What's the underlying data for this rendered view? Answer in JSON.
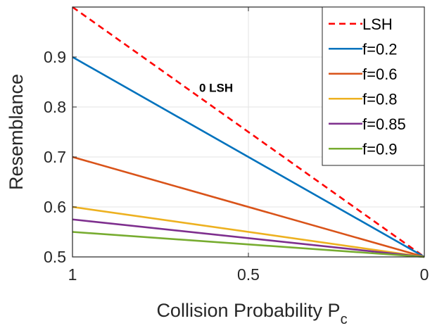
{
  "chart_data": {
    "type": "line",
    "xlabel": "Collision Probability P",
    "xlabel_subscript": "c",
    "ylabel": "Resemblance",
    "xlim": [
      1,
      0
    ],
    "ylim": [
      0.5,
      1.0
    ],
    "x_reversed": true,
    "xticks": [
      1,
      0.5,
      0
    ],
    "xtick_labels": [
      "1",
      "0.5",
      "0"
    ],
    "yticks": [
      0.5,
      0.6,
      0.7,
      0.8,
      0.9
    ],
    "ytick_labels": [
      "0.5",
      "0.6",
      "0.7",
      "0.8",
      "0.9"
    ],
    "grid": true,
    "legend_position": "top-right",
    "annotation": {
      "text": "0 LSH",
      "x": 0.5,
      "y": 0.83
    },
    "series": [
      {
        "name": "LSH",
        "color": "#ff0000",
        "dashed": true,
        "x": [
          1,
          0
        ],
        "y": [
          1.0,
          0.5
        ]
      },
      {
        "name": "f=0.2",
        "color": "#0072bd",
        "dashed": false,
        "x": [
          1,
          0
        ],
        "y": [
          0.9,
          0.5
        ]
      },
      {
        "name": "f=0.6",
        "color": "#d95319",
        "dashed": false,
        "x": [
          1,
          0
        ],
        "y": [
          0.7,
          0.5
        ]
      },
      {
        "name": "f=0.8",
        "color": "#edb120",
        "dashed": false,
        "x": [
          1,
          0
        ],
        "y": [
          0.6,
          0.5
        ]
      },
      {
        "name": "f=0.85",
        "color": "#7e2f8e",
        "dashed": false,
        "x": [
          1,
          0
        ],
        "y": [
          0.575,
          0.5
        ]
      },
      {
        "name": "f=0.9",
        "color": "#77ac30",
        "dashed": false,
        "x": [
          1,
          0
        ],
        "y": [
          0.55,
          0.5
        ]
      }
    ]
  }
}
